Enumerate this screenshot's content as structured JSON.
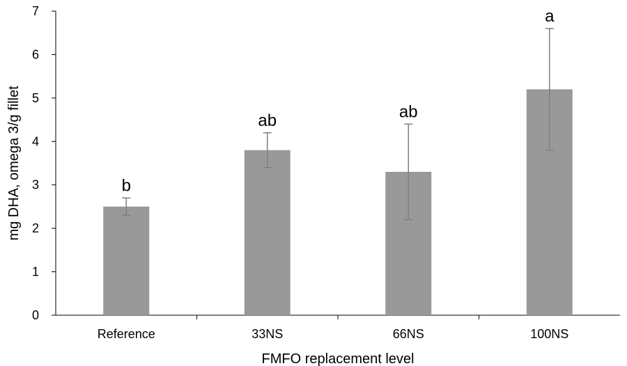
{
  "chart_data": {
    "type": "bar",
    "title": "",
    "xlabel": "FMFO replacement level",
    "ylabel": "mg DHA, omega 3/g fillet",
    "categories": [
      "Reference",
      "33NS",
      "66NS",
      "100NS"
    ],
    "values": [
      2.5,
      3.8,
      3.3,
      5.2
    ],
    "error_bars": [
      0.2,
      0.4,
      1.1,
      1.4
    ],
    "significance_labels": [
      "b",
      "ab",
      "ab",
      "a"
    ],
    "ylim": [
      0,
      7
    ],
    "yticks": [
      "0",
      "1",
      "2",
      "3",
      "4",
      "5",
      "6",
      "7"
    ],
    "grid": false,
    "legend": "none",
    "colors": {
      "bar": "#999999",
      "error_bar": "#7f7f7f",
      "axis": "#000000"
    }
  }
}
